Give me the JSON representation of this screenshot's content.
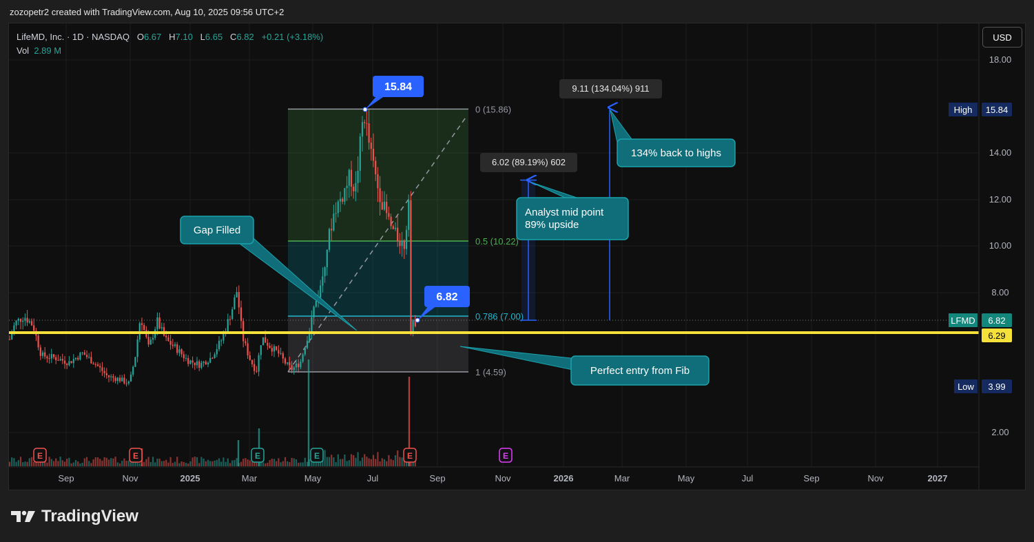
{
  "header": {
    "credit": "zozopetr2 created with TradingView.com, Aug 10, 2025 09:56 UTC+2"
  },
  "legend": {
    "symbol": "LifeMD, Inc. · 1D · NASDAQ",
    "o_label": "O",
    "o": "6.67",
    "h_label": "H",
    "h": "7.10",
    "l_label": "L",
    "l": "6.65",
    "c_label": "C",
    "c": "6.82",
    "change": "+0.21 (+3.18%)",
    "vol_label": "Vol",
    "vol": "2.89 M"
  },
  "currency_button": "USD",
  "brand": {
    "name": "TradingView"
  },
  "chart_data": {
    "type": "candlestick",
    "y_ticks": [
      "18.00",
      "14.00",
      "12.00",
      "10.00",
      "8.00",
      "2.00"
    ],
    "x_ticks": [
      "Sep",
      "Nov",
      "2025",
      "Mar",
      "May",
      "Jul",
      "Sep",
      "Nov",
      "2026",
      "Mar",
      "May",
      "Jul",
      "Sep",
      "Nov",
      "2027"
    ],
    "ylim": [
      1.0,
      19.0
    ],
    "price_badges": [
      {
        "label": "High",
        "value": "15.84",
        "color": "#152a5e"
      },
      {
        "label": "LFMD",
        "value": "6.82",
        "color": "#14877c"
      },
      {
        "label": "",
        "value": "6.29",
        "color": "#f5e13a"
      },
      {
        "label": "Low",
        "value": "3.99",
        "color": "#152a5e"
      }
    ],
    "fib_levels": [
      {
        "label": "0 (15.86)",
        "price": 15.86,
        "color": "#9598a1"
      },
      {
        "label": "0.5 (10.22)",
        "price": 10.22,
        "color": "#4caf50"
      },
      {
        "label": "0.786 (7.00)",
        "price": 7.0,
        "color": "#22b8cf"
      },
      {
        "label": "1 (4.59)",
        "price": 4.59,
        "color": "#9598a1"
      }
    ],
    "horizontal_line": {
      "price": 6.29,
      "color": "#f5e13a"
    },
    "current_price": 6.82,
    "price_labels": [
      {
        "text": "15.84",
        "price": 15.84
      },
      {
        "text": "6.82",
        "price": 6.82
      }
    ],
    "measurements": [
      {
        "text": "6.02 (89.19%) 602",
        "from": 6.82,
        "to": 12.84
      },
      {
        "text": "9.11 (134.04%) 911",
        "from": 6.82,
        "to": 15.93
      }
    ],
    "callouts": [
      {
        "text": "Gap Filled"
      },
      {
        "text": "Analyst mid point",
        "text2": "89% upside"
      },
      {
        "text": "134% back to highs"
      },
      {
        "text": "Perfect entry from Fib"
      }
    ],
    "earnings_markers": [
      "E",
      "E",
      "E",
      "E",
      "E",
      "E"
    ],
    "colors": {
      "up": "#26a69a",
      "down": "#ef5350",
      "callout": "#0f6e79",
      "label_blue": "#2962ff"
    }
  }
}
